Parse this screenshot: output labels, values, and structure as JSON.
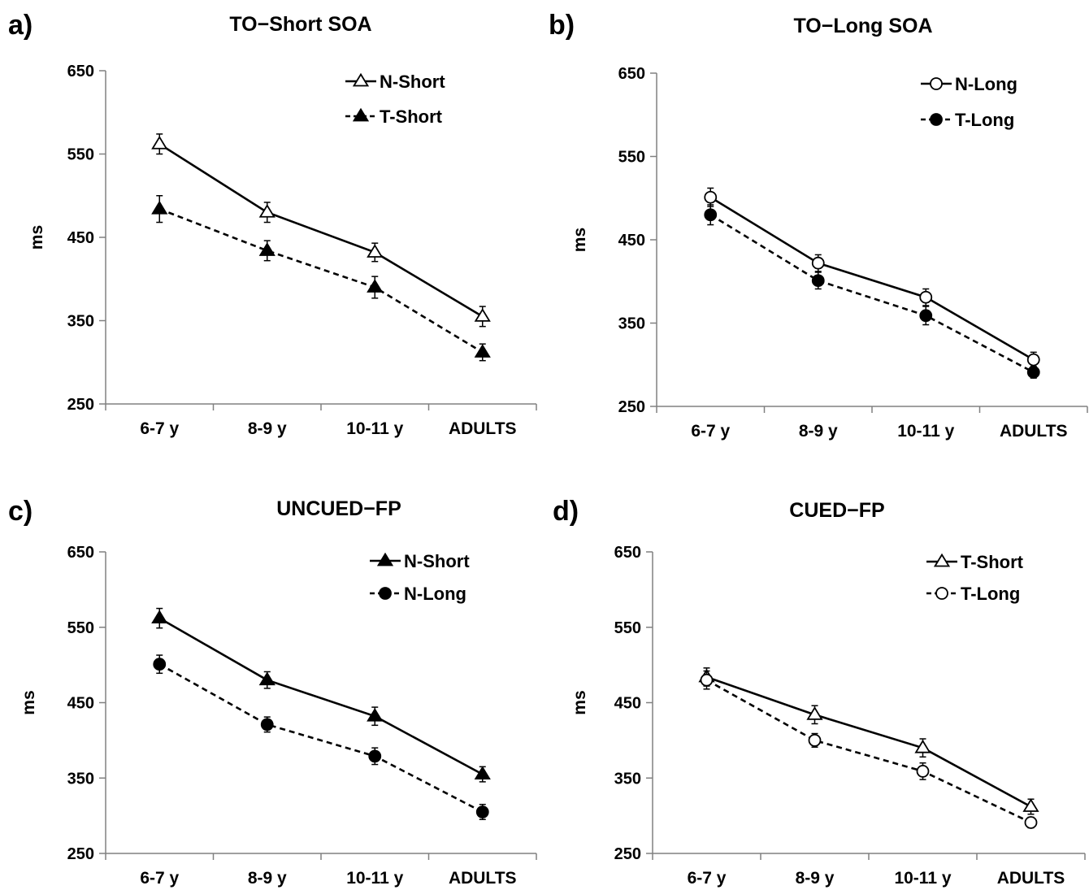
{
  "chart_data": [
    {
      "type": "line",
      "panel": "a)",
      "title": "TO−Short SOA",
      "ylabel": "ms",
      "xlabel": "",
      "categories": [
        "6-7 y",
        "8-9 y",
        "10-11 y",
        "ADULTS"
      ],
      "ylim": [
        250,
        650
      ],
      "yticks": [
        250,
        350,
        450,
        550,
        650
      ],
      "legend_position": "top-right",
      "series": [
        {
          "name": "N-Short",
          "marker": "triangle",
          "fill": "open",
          "line": "solid",
          "values": [
            562,
            480,
            432,
            355
          ],
          "errors": [
            12,
            12,
            11,
            12
          ]
        },
        {
          "name": "T-Short",
          "marker": "triangle",
          "fill": "filled",
          "line": "dashed",
          "values": [
            484,
            434,
            390,
            312
          ],
          "errors": [
            16,
            12,
            13,
            10
          ]
        }
      ]
    },
    {
      "type": "line",
      "panel": "b)",
      "title": "TO−Long SOA",
      "ylabel": "ms",
      "xlabel": "",
      "categories": [
        "6-7 y",
        "8-9 y",
        "10-11 y",
        "ADULTS"
      ],
      "ylim": [
        250,
        650
      ],
      "yticks": [
        250,
        350,
        450,
        550,
        650
      ],
      "legend_position": "top-right",
      "series": [
        {
          "name": "N-Long",
          "marker": "circle",
          "fill": "open",
          "line": "solid",
          "values": [
            501,
            422,
            381,
            306
          ],
          "errors": [
            11,
            10,
            10,
            9
          ]
        },
        {
          "name": "T-Long",
          "marker": "circle",
          "fill": "filled",
          "line": "dashed",
          "values": [
            480,
            401,
            359,
            291
          ],
          "errors": [
            12,
            10,
            11,
            7
          ]
        }
      ]
    },
    {
      "type": "line",
      "panel": "c)",
      "title": "UNCUED−FP",
      "ylabel": "ms",
      "xlabel": "",
      "categories": [
        "6-7 y",
        "8-9 y",
        "10-11 y",
        "ADULTS"
      ],
      "ylim": [
        250,
        650
      ],
      "yticks": [
        250,
        350,
        450,
        550,
        650
      ],
      "legend_position": "top-right",
      "series": [
        {
          "name": "N-Short",
          "marker": "triangle",
          "fill": "filled",
          "line": "solid",
          "values": [
            562,
            480,
            432,
            355
          ],
          "errors": [
            13,
            11,
            12,
            10
          ]
        },
        {
          "name": "N-Long",
          "marker": "circle",
          "fill": "filled",
          "line": "dashed",
          "values": [
            501,
            421,
            379,
            305
          ],
          "errors": [
            12,
            10,
            11,
            10
          ]
        }
      ]
    },
    {
      "type": "line",
      "panel": "d)",
      "title": "CUED−FP",
      "ylabel": "ms",
      "xlabel": "",
      "categories": [
        "6-7 y",
        "8-9 y",
        "10-11 y",
        "ADULTS"
      ],
      "ylim": [
        250,
        650
      ],
      "yticks": [
        250,
        350,
        450,
        550,
        650
      ],
      "legend_position": "top-right",
      "series": [
        {
          "name": "T-Short",
          "marker": "triangle",
          "fill": "open",
          "line": "solid",
          "values": [
            484,
            434,
            390,
            312
          ],
          "errors": [
            12,
            12,
            12,
            10
          ]
        },
        {
          "name": "T-Long",
          "marker": "circle",
          "fill": "open",
          "line": "dashed",
          "values": [
            480,
            400,
            359,
            291
          ],
          "errors": [
            12,
            9,
            11,
            7
          ]
        }
      ]
    }
  ]
}
